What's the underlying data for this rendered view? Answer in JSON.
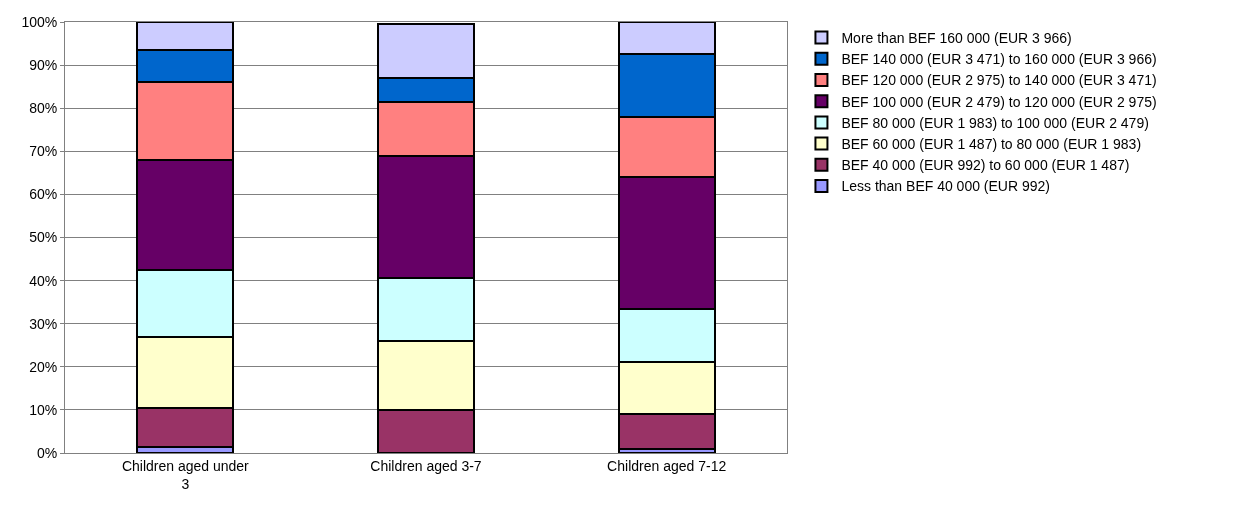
{
  "chart_data": {
    "type": "bar",
    "stacked": true,
    "categories": [
      "Children aged under 3",
      "Children aged 3-7",
      "Children aged 7-12"
    ],
    "series": [
      {
        "name": "Less than BEF 40 000 (EUR 992)",
        "color": "#9999ff",
        "values": [
          1.5,
          null,
          1
        ]
      },
      {
        "name": "BEF 40 000 (EUR 992) to 60 000 (EUR 1 487)",
        "color": "#993366",
        "values": [
          9,
          10,
          8
        ]
      },
      {
        "name": "BEF 60 000 (EUR 1 487) to 80 000 (EUR 1 983)",
        "color": "#ffffcc",
        "values": [
          16.5,
          16,
          12
        ]
      },
      {
        "name": "BEF 80 000 (EUR 1 983) to 100 000 (EUR 2 479)",
        "color": "#ccffff",
        "values": [
          15.5,
          14.5,
          12.5
        ]
      },
      {
        "name": "BEF 100 000 (EUR 2 479) to 120 000 (EUR 2 975)",
        "color": "#660066",
        "values": [
          25.5,
          28.5,
          30.5
        ]
      },
      {
        "name": "BEF 120 000 (EUR 2 975) to 140 000 (EUR 3 471)",
        "color": "#ff8080",
        "values": [
          18,
          12.5,
          14
        ]
      },
      {
        "name": "BEF 140 000 (EUR 3 471) to 160 000 (EUR 3 966)",
        "color": "#0066cc",
        "values": [
          7.5,
          5.5,
          14.5
        ]
      },
      {
        "name": "More than BEF 160 000 (EUR 3 966)",
        "color": "#ccccff",
        "values": [
          6.5,
          12.5,
          7.5
        ]
      }
    ],
    "ylim": [
      0,
      100
    ],
    "yticks": [
      {
        "value": 0,
        "label": "0%"
      },
      {
        "value": 10,
        "label": "10%"
      },
      {
        "value": 20,
        "label": "20%"
      },
      {
        "value": 30,
        "label": "30%"
      },
      {
        "value": 40,
        "label": "40%"
      },
      {
        "value": 50,
        "label": "50%"
      },
      {
        "value": 60,
        "label": "60%"
      },
      {
        "value": 70,
        "label": "70%"
      },
      {
        "value": 80,
        "label": "80%"
      },
      {
        "value": 90,
        "label": "90%"
      },
      {
        "value": 100,
        "label": "100%"
      }
    ],
    "grid": "y",
    "legend": "right"
  }
}
